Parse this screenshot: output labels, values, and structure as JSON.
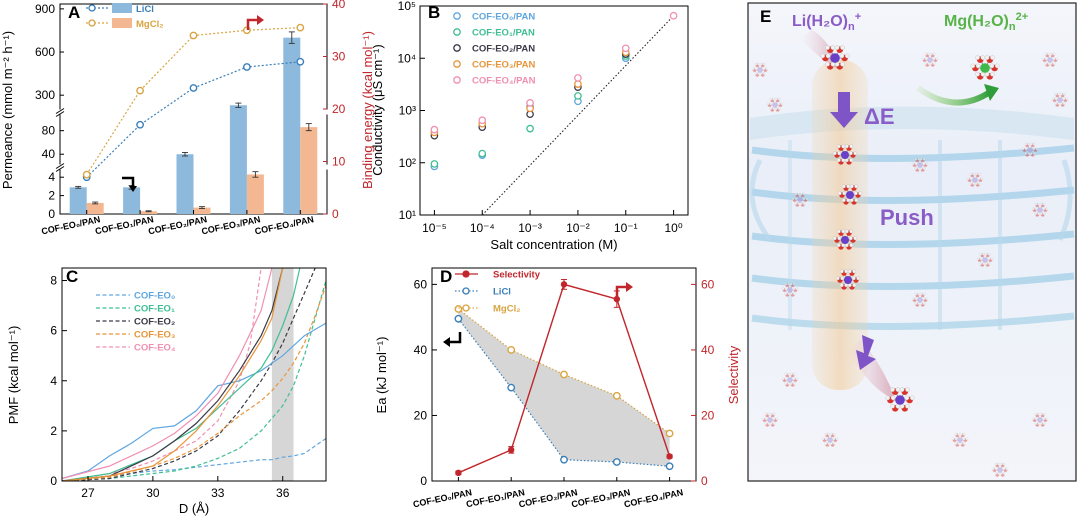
{
  "colors": {
    "licl": "#3a7fb8",
    "licl_bar": "#8db9dc",
    "mgcl2": "#d9a441",
    "mgcl2_bar": "#f3b891",
    "binding": "#c0262b",
    "eo0": "#5fa6e0",
    "eo1": "#3fbf92",
    "eo2": "#3a3a48",
    "eo3": "#e8953a",
    "eo4": "#f08fb2",
    "fill_gray": "#cfcfcf",
    "highlight": "#d6d6d6"
  },
  "categories": [
    "COF-EO₀/PAN",
    "COF-EO₁/PAN",
    "COF-EO₂/PAN",
    "COF-EO₃/PAN",
    "COF-EO₄/PAN"
  ],
  "chart_data": [
    {
      "panel": "A",
      "type": "bar",
      "ylabel": "Permeance (mmol m⁻² h⁻¹)",
      "y2label": "Binding energy (kcal mol⁻¹)",
      "y_ticks": [
        "0",
        "2",
        "4",
        "40",
        "80",
        "300",
        "600",
        "900"
      ],
      "y2_ticks": [
        "0",
        "10",
        "20",
        "30",
        "40"
      ],
      "y2lim": [
        0,
        40
      ],
      "series": [
        {
          "name": "LiCl",
          "kind": "bar",
          "values": [
            2.9,
            2.9,
            40,
            230,
            700
          ],
          "errors": [
            0.1,
            0.2,
            3,
            15,
            40
          ]
        },
        {
          "name": "MgCl₂",
          "kind": "bar",
          "values": [
            1.2,
            0.3,
            0.7,
            4.3,
            86
          ],
          "errors": [
            0.1,
            0.05,
            0.1,
            0.3,
            6
          ]
        },
        {
          "name": "LiCl",
          "kind": "line",
          "axis": "right",
          "values": [
            7,
            17,
            24,
            28,
            29
          ]
        },
        {
          "name": "MgCl₂",
          "kind": "line",
          "axis": "right",
          "values": [
            7.5,
            23.5,
            34,
            35,
            35.5
          ]
        }
      ]
    },
    {
      "panel": "B",
      "type": "scatter",
      "xlabel": "Salt concentration (M)",
      "ylabel": "Conductivity (μS cm⁻¹)",
      "x_scale": "log",
      "y_scale": "log",
      "xlim": [
        5e-06,
        2
      ],
      "ylim": [
        10,
        100000
      ],
      "x_ticks": [
        "10⁻⁵",
        "10⁻⁴",
        "10⁻³",
        "10⁻²",
        "10⁻¹",
        "10⁰"
      ],
      "y_ticks": [
        "10¹",
        "10²",
        "10³",
        "10⁴",
        "10⁵"
      ],
      "x": [
        1e-05,
        0.0001,
        0.001,
        0.01,
        0.1
      ],
      "series": [
        {
          "name": "COF-EO₀/PAN",
          "values": [
            85,
            140,
            1200,
            1500,
            10000
          ]
        },
        {
          "name": "COF-EO₁/PAN",
          "values": [
            95,
            150,
            450,
            1900,
            11000
          ]
        },
        {
          "name": "COF-EO₂/PAN",
          "values": [
            330,
            480,
            850,
            2800,
            12000
          ]
        },
        {
          "name": "COF-EO₃/PAN",
          "values": [
            380,
            560,
            1100,
            3200,
            13000
          ]
        },
        {
          "name": "COF-EO₄/PAN",
          "values": [
            430,
            650,
            1400,
            4200,
            15500
          ]
        }
      ],
      "reference_line": {
        "x": [
          0.0001,
          1
        ],
        "y": [
          10,
          65000
        ]
      },
      "reference_point": {
        "x": 1,
        "y": 65000
      }
    },
    {
      "panel": "C",
      "type": "line",
      "xlabel": "D (Å)",
      "ylabel": "PMF (kcal mol⁻¹)",
      "xlim": [
        25.8,
        38
      ],
      "ylim": [
        0,
        8.5
      ],
      "x_ticks": [
        "27",
        "30",
        "33",
        "36"
      ],
      "y_ticks": [
        "0",
        "2",
        "4",
        "6",
        "8"
      ],
      "highlight_x": [
        35.5,
        36.5
      ],
      "series": [
        {
          "name": "COF-EO₀",
          "dash": true,
          "x": [
            25.8,
            27,
            28,
            29,
            30,
            31,
            32,
            33,
            34,
            35,
            35.5,
            36,
            36.5,
            37,
            37.5,
            38
          ],
          "y": [
            0,
            0.1,
            0.2,
            0.3,
            0.4,
            0.45,
            0.55,
            0.65,
            0.75,
            0.85,
            0.85,
            0.95,
            1.0,
            1.1,
            1.4,
            1.7
          ]
        },
        {
          "name": "COF-EO₁",
          "dash": true,
          "x": [
            25.8,
            28,
            30,
            31,
            32,
            33,
            34,
            35,
            36,
            36.5,
            37,
            37.5,
            38
          ],
          "y": [
            0,
            0.1,
            0.3,
            0.4,
            0.6,
            0.9,
            1.3,
            2.0,
            3.0,
            3.8,
            5.0,
            6.5,
            8.0
          ]
        },
        {
          "name": "COF-EO₂",
          "dash": true,
          "x": [
            25.8,
            28,
            30,
            31,
            32,
            33,
            34,
            35,
            35.5,
            36,
            36.5,
            37,
            37.5
          ],
          "y": [
            0,
            0.1,
            0.5,
            0.8,
            1.2,
            1.8,
            2.8,
            4.0,
            4.7,
            5.5,
            6.5,
            7.5,
            8.5
          ]
        },
        {
          "name": "COF-EO₃",
          "dash": true,
          "x": [
            25.8,
            28,
            30,
            31,
            32,
            33,
            34,
            35,
            35.5,
            36,
            36.5,
            37,
            37.5,
            38
          ],
          "y": [
            0,
            0.15,
            0.6,
            0.9,
            1.3,
            1.9,
            2.6,
            3.2,
            3.6,
            4.1,
            4.7,
            5.5,
            6.6,
            7.8
          ]
        },
        {
          "name": "COF-EO₄",
          "dash": true,
          "x": [
            25.8,
            28,
            29,
            30,
            31,
            32,
            33,
            34,
            34.5,
            35
          ],
          "y": [
            0,
            0.3,
            0.5,
            0.8,
            1.2,
            1.6,
            2.4,
            4.0,
            5.5,
            8.5
          ]
        },
        {
          "name": "",
          "dash": false,
          "color": "eo0",
          "x": [
            25.8,
            27,
            28,
            29,
            30,
            31,
            32,
            33,
            34,
            35,
            36,
            37,
            38
          ],
          "y": [
            0.1,
            0.4,
            1.0,
            1.5,
            2.1,
            2.2,
            2.8,
            3.8,
            4.0,
            4.4,
            5.0,
            5.8,
            6.3
          ]
        },
        {
          "name": "",
          "dash": false,
          "color": "eo1",
          "x": [
            25.8,
            28,
            30,
            31,
            32,
            33,
            34,
            35,
            35.5,
            36,
            36.5,
            37
          ],
          "y": [
            0,
            0.3,
            1.0,
            1.6,
            2.1,
            2.9,
            3.7,
            4.5,
            5.2,
            6.2,
            7.4,
            9.3
          ]
        },
        {
          "name": "",
          "dash": false,
          "color": "eo2",
          "x": [
            25.8,
            28,
            30,
            31,
            32,
            33,
            34,
            35,
            35.5,
            36
          ],
          "y": [
            0,
            0.2,
            1.0,
            1.6,
            2.3,
            3.2,
            4.4,
            5.8,
            6.8,
            8.5
          ]
        },
        {
          "name": "",
          "dash": false,
          "color": "eo3",
          "x": [
            25.8,
            28,
            30,
            31,
            32,
            33,
            34,
            35,
            35.5,
            36
          ],
          "y": [
            0,
            0.2,
            0.6,
            1.2,
            2.0,
            3.0,
            4.2,
            5.6,
            6.5,
            8.5
          ]
        },
        {
          "name": "",
          "dash": false,
          "color": "eo4",
          "x": [
            25.8,
            28,
            30,
            31,
            32,
            33,
            34,
            35,
            35.5
          ],
          "y": [
            0.1,
            0.6,
            1.4,
            1.9,
            2.6,
            3.5,
            5.0,
            6.8,
            8.5
          ]
        }
      ]
    },
    {
      "panel": "D",
      "type": "line",
      "ylabel": "Ea (kJ mol⁻¹)",
      "y2label": "Selectivity",
      "ylim": [
        0,
        65
      ],
      "y2lim": [
        0,
        65
      ],
      "y_ticks": [
        "0",
        "20",
        "40",
        "60"
      ],
      "y2_ticks": [
        "0",
        "20",
        "40",
        "60"
      ],
      "series": [
        {
          "name": "Selectivity",
          "axis": "right",
          "values": [
            2.5,
            9.5,
            60,
            55.5,
            7.5
          ],
          "errors": [
            0.5,
            1.0,
            1.5,
            2.5,
            0.5
          ]
        },
        {
          "name": "LiCl",
          "axis": "left",
          "values": [
            49.5,
            28.5,
            6.5,
            5.8,
            4.5
          ]
        },
        {
          "name": "MgCl₂",
          "axis": "left",
          "values": [
            52.5,
            40,
            32.5,
            26,
            14.5
          ]
        }
      ]
    }
  ],
  "panels": {
    "a": {
      "label": "A",
      "legend": [
        "LiCl",
        "MgCl₂"
      ]
    },
    "b": {
      "label": "B"
    },
    "c": {
      "label": "C"
    },
    "d": {
      "label": "D"
    },
    "e": {
      "label": "E",
      "li_label": "Li(H₂O)",
      "li_sub": "n",
      "li_sup": "+",
      "mg_label": "Mg(H₂O)",
      "mg_sub": "n",
      "mg_sup": "2+",
      "delta_e": "ΔE",
      "push": "Push"
    }
  }
}
